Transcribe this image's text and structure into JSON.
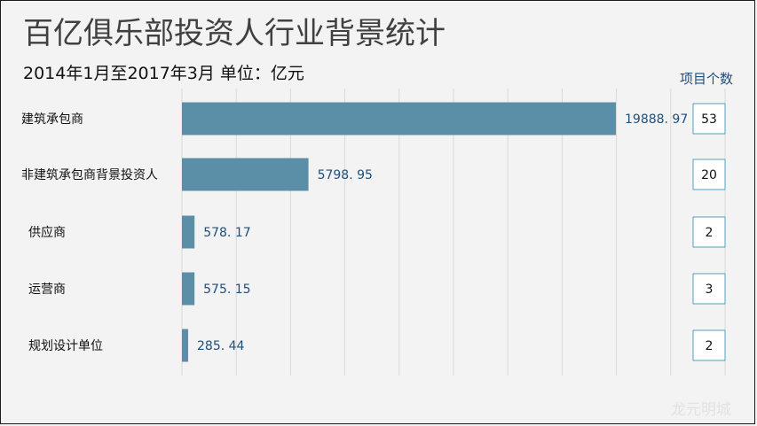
{
  "title": "百亿俱乐部投资人行业背景统计",
  "subtitle": "2014年1月至2017年3月  单位：亿元",
  "count_header": "项目个数",
  "watermark": "龙元明城",
  "colors": {
    "bar": "#5b8fa8",
    "value_label": "#1f4e79",
    "grid": "#d9d9d9",
    "box_border": "#4fa3c0"
  },
  "chart_data": {
    "type": "bar",
    "orientation": "horizontal",
    "title": "百亿俱乐部投资人行业背景统计",
    "subtitle": "2014年1月至2017年3月  单位：亿元",
    "categories": [
      "建筑承包商",
      "非建筑承包商背景投资人",
      "供应商",
      "运营商",
      "规划设计单位"
    ],
    "values": [
      19888.97,
      5798.95,
      578.17,
      575.15,
      285.44
    ],
    "value_labels": [
      "19888. 97",
      "5798. 95",
      "578. 17",
      "575. 15",
      "285. 44"
    ],
    "project_counts": [
      53,
      20,
      2,
      3,
      2
    ],
    "xlim": [
      0,
      22000
    ],
    "grid": true,
    "legend": "none"
  }
}
